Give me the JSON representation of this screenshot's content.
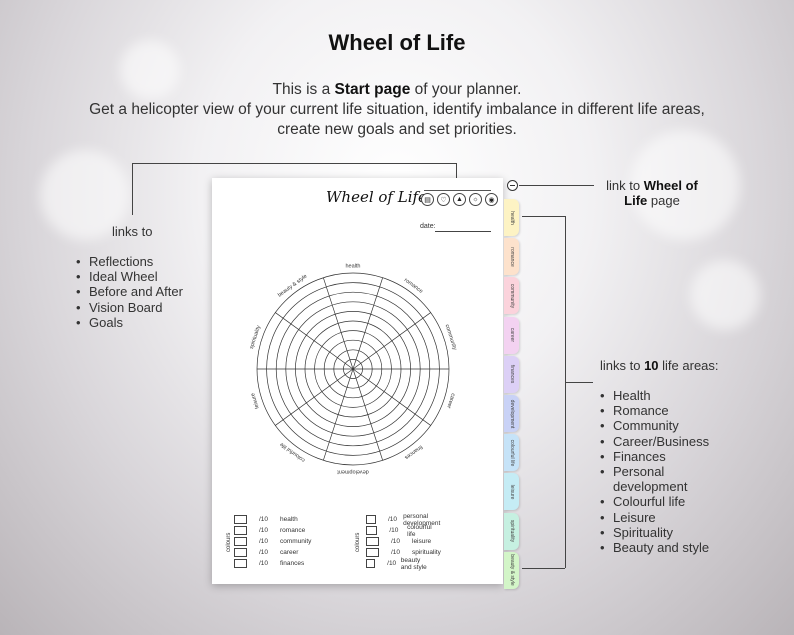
{
  "heading": "Wheel of Life",
  "intro": {
    "line1_a": "This is a ",
    "line1_b": "Start page",
    "line1_c": " of your planner.",
    "line2": "Get a helicopter view of your current life situation, identify imbalance in different life areas,",
    "line3": "create new goals and set priorities."
  },
  "left_note": {
    "label": "links to",
    "items": [
      "Reflections",
      "Ideal Wheel",
      "Before and After",
      "Vision Board",
      "Goals"
    ]
  },
  "right_top_note": {
    "a": "link to ",
    "b": "Wheel of",
    "c": "Life",
    "d": " page"
  },
  "right_note": {
    "label_a": "links to ",
    "label_b": "10",
    "label_c": " life areas:",
    "items": [
      "Health",
      "Romance",
      "Community",
      "Career/Business",
      "Finances",
      "Personal",
      "development",
      "Colourful life",
      "Leisure",
      "Spirituality",
      "Beauty and style"
    ]
  },
  "planner": {
    "title": "Wheel of Life",
    "date_label": "date:",
    "icons": [
      "document-icon",
      "heart-icon",
      "chart-icon",
      "sun-icon",
      "target-icon"
    ],
    "wheel_labels": [
      "health",
      "romance",
      "community",
      "career",
      "finances",
      "development",
      "colourful life",
      "leisure",
      "spirituality",
      "beauty & style"
    ],
    "colours_label": "colours",
    "out_of": "/10",
    "scores_left": [
      "health",
      "romance",
      "community",
      "career",
      "finances"
    ],
    "scores_right": [
      "personal development",
      "colourful life",
      "leisure",
      "spirituality",
      "beauty and style"
    ]
  },
  "tabs": [
    {
      "label": "health",
      "color": "#fdf3c4"
    },
    {
      "label": "romance",
      "color": "#fde2cc"
    },
    {
      "label": "community",
      "color": "#fbd3dc"
    },
    {
      "label": "career",
      "color": "#f3d2f1"
    },
    {
      "label": "finances",
      "color": "#dcd0f6"
    },
    {
      "label": "development",
      "color": "#c9d2f6"
    },
    {
      "label": "colourful life",
      "color": "#c6e3f8"
    },
    {
      "label": "leisure",
      "color": "#c5ecf5"
    },
    {
      "label": "spirituality",
      "color": "#c6f0e1"
    },
    {
      "label": "beauty & style",
      "color": "#d3f5c8"
    }
  ]
}
